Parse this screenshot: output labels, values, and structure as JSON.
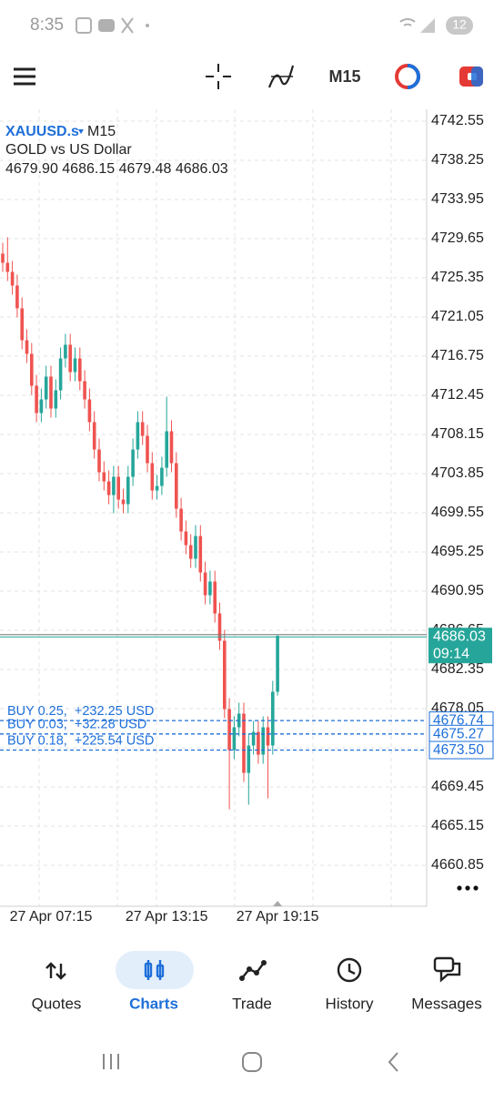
{
  "status_bar": {
    "time": "8:35",
    "battery": "12"
  },
  "toolbar": {
    "timeframe": "M15"
  },
  "chart_data": {
    "type": "candlestick",
    "symbol": "XAUUSD.s",
    "timeframe": "M15",
    "description": "GOLD vs US Dollar",
    "ohlc_label": "4679.90 4686.15 4679.48 4686.03",
    "categories": [
      null,
      null,
      null,
      null,
      null,
      null,
      null,
      null,
      null,
      null,
      "27 Apr 07:15",
      null,
      null,
      null,
      null,
      null,
      null,
      null,
      null,
      null,
      null,
      null,
      null,
      null,
      null,
      null,
      null,
      null,
      null,
      null,
      null,
      null,
      null,
      null,
      "27 Apr 13:15",
      null,
      null,
      null,
      null,
      null,
      null,
      null,
      null,
      null,
      null,
      null,
      null,
      null,
      null,
      null,
      null,
      null,
      null,
      null,
      null,
      null,
      null,
      "27 Apr 19:15"
    ],
    "open": [
      4728.0,
      4727.0,
      4726.0,
      4724.5,
      4722.0,
      4718.5,
      4717.0,
      4713.5,
      4710.5,
      4712.0,
      4714.5,
      4711.0,
      4713.0,
      4716.5,
      4718.0,
      4715.0,
      4716.5,
      4714.0,
      4712.0,
      4709.5,
      4706.5,
      4704.0,
      4703.0,
      4701.5,
      4703.5,
      4701.0,
      4700.5,
      4703.5,
      4706.5,
      4709.5,
      4708.0,
      4705.0,
      4702.0,
      4702.5,
      4704.5,
      4708.5,
      4705.0,
      4700.0,
      4697.5,
      4696.0,
      4694.5,
      4697.0,
      4693.0,
      4690.5,
      4692.0,
      4688.5,
      4685.5,
      4678.0,
      4673.5,
      4676.0,
      4677.5,
      4671.0,
      4674.0,
      4675.5,
      4673.0,
      4676.0,
      4674.0,
      4679.9
    ],
    "high": [
      4729.2,
      4729.8,
      4727.2,
      4725.7,
      4723.2,
      4719.7,
      4718.2,
      4714.7,
      4713.2,
      4715.7,
      4715.7,
      4714.2,
      4717.7,
      4719.2,
      4719.2,
      4717.7,
      4717.7,
      4715.2,
      4713.2,
      4710.7,
      4707.7,
      4705.2,
      4704.2,
      4704.7,
      4704.7,
      4702.2,
      4704.7,
      4707.7,
      4710.7,
      4710.7,
      4709.2,
      4706.2,
      4703.7,
      4705.7,
      4712.3,
      4709.7,
      4706.2,
      4701.2,
      4698.7,
      4697.2,
      4698.2,
      4698.2,
      4694.2,
      4693.2,
      4693.2,
      4689.7,
      4686.7,
      4679.2,
      4677.2,
      4678.7,
      4678.7,
      4675.2,
      4676.7,
      4676.7,
      4677.2,
      4677.2,
      4681.1,
      4686.15
    ],
    "low": [
      4726.0,
      4725.0,
      4723.5,
      4721.0,
      4717.5,
      4716.0,
      4712.5,
      4709.5,
      4709.5,
      4711.0,
      4710.0,
      4710.0,
      4712.0,
      4715.5,
      4714.0,
      4714.0,
      4713.0,
      4711.0,
      4708.5,
      4705.5,
      4703.0,
      4702.0,
      4700.5,
      4699.5,
      4700.0,
      4699.5,
      4699.5,
      4702.5,
      4705.5,
      4707.0,
      4704.0,
      4701.0,
      4701.0,
      4701.5,
      4703.5,
      4704.0,
      4699.0,
      4696.5,
      4695.0,
      4693.5,
      4693.5,
      4692.0,
      4689.5,
      4689.5,
      4687.5,
      4684.5,
      4677.0,
      4667.0,
      4672.5,
      4675.0,
      4670.0,
      4667.5,
      4673.0,
      4672.0,
      4672.0,
      4668.2,
      4673.0,
      4679.48
    ],
    "close": [
      4727.0,
      4726.0,
      4724.5,
      4722.0,
      4718.5,
      4717.0,
      4713.5,
      4710.5,
      4712.0,
      4714.5,
      4711.0,
      4713.0,
      4716.5,
      4718.0,
      4715.0,
      4716.5,
      4714.0,
      4712.0,
      4709.5,
      4706.5,
      4704.0,
      4703.0,
      4701.5,
      4703.5,
      4701.0,
      4700.5,
      4703.5,
      4706.5,
      4709.5,
      4708.0,
      4705.0,
      4702.0,
      4702.5,
      4704.5,
      4708.5,
      4705.0,
      4700.0,
      4697.5,
      4696.0,
      4694.5,
      4697.0,
      4693.0,
      4690.5,
      4692.0,
      4688.5,
      4685.5,
      4678.0,
      4673.5,
      4676.0,
      4677.5,
      4671.0,
      4674.0,
      4675.5,
      4673.0,
      4676.0,
      4674.0,
      4679.9,
      4686.03
    ],
    "up_color": "#26a69a",
    "down_color": "#ef5350",
    "ylim": [
      4656.35,
      4743.85
    ],
    "yticks": [
      4742.55,
      4738.25,
      4733.95,
      4729.65,
      4725.35,
      4721.05,
      4716.75,
      4712.45,
      4708.15,
      4703.85,
      4699.55,
      4695.25,
      4690.95,
      4686.65,
      4682.35,
      4678.05,
      4673.75,
      4669.45,
      4665.15,
      4660.85
    ],
    "grid": true,
    "countdown": "09:14",
    "positions": [
      {
        "text": "BUY 0.25,  +232.25 USD",
        "price": 4676.74
      },
      {
        "text": "BUY 0.03,  +32.28 USD",
        "price": 4675.27
      },
      {
        "text": "BUY 0.18,  +225.54 USD",
        "price": 4673.5,
        "price_label": "4673.50"
      }
    ]
  },
  "nav": {
    "items": [
      "Quotes",
      "Charts",
      "Trade",
      "History",
      "Messages"
    ],
    "active": 1
  }
}
